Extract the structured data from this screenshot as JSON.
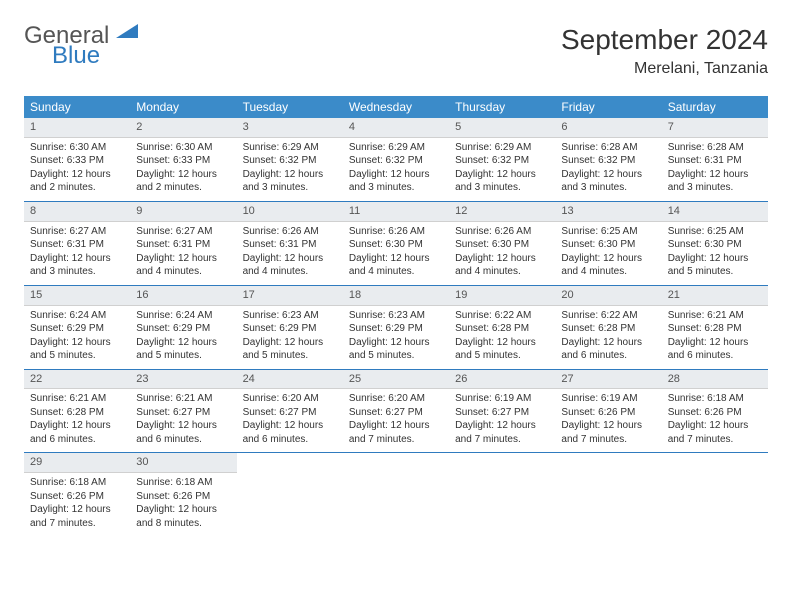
{
  "brand": {
    "line1": "General",
    "line2": "Blue"
  },
  "title": "September 2024",
  "location": "Merelani, Tanzania",
  "header_bg": "#3b8bc9",
  "daynum_bg": "#e9ecef",
  "sep_color": "#2f7bbf",
  "weekdays": [
    "Sunday",
    "Monday",
    "Tuesday",
    "Wednesday",
    "Thursday",
    "Friday",
    "Saturday"
  ],
  "weeks": [
    [
      {
        "n": "1",
        "sr": "6:30 AM",
        "ss": "6:33 PM",
        "dl": "12 hours and 2 minutes."
      },
      {
        "n": "2",
        "sr": "6:30 AM",
        "ss": "6:33 PM",
        "dl": "12 hours and 2 minutes."
      },
      {
        "n": "3",
        "sr": "6:29 AM",
        "ss": "6:32 PM",
        "dl": "12 hours and 3 minutes."
      },
      {
        "n": "4",
        "sr": "6:29 AM",
        "ss": "6:32 PM",
        "dl": "12 hours and 3 minutes."
      },
      {
        "n": "5",
        "sr": "6:29 AM",
        "ss": "6:32 PM",
        "dl": "12 hours and 3 minutes."
      },
      {
        "n": "6",
        "sr": "6:28 AM",
        "ss": "6:32 PM",
        "dl": "12 hours and 3 minutes."
      },
      {
        "n": "7",
        "sr": "6:28 AM",
        "ss": "6:31 PM",
        "dl": "12 hours and 3 minutes."
      }
    ],
    [
      {
        "n": "8",
        "sr": "6:27 AM",
        "ss": "6:31 PM",
        "dl": "12 hours and 3 minutes."
      },
      {
        "n": "9",
        "sr": "6:27 AM",
        "ss": "6:31 PM",
        "dl": "12 hours and 4 minutes."
      },
      {
        "n": "10",
        "sr": "6:26 AM",
        "ss": "6:31 PM",
        "dl": "12 hours and 4 minutes."
      },
      {
        "n": "11",
        "sr": "6:26 AM",
        "ss": "6:30 PM",
        "dl": "12 hours and 4 minutes."
      },
      {
        "n": "12",
        "sr": "6:26 AM",
        "ss": "6:30 PM",
        "dl": "12 hours and 4 minutes."
      },
      {
        "n": "13",
        "sr": "6:25 AM",
        "ss": "6:30 PM",
        "dl": "12 hours and 4 minutes."
      },
      {
        "n": "14",
        "sr": "6:25 AM",
        "ss": "6:30 PM",
        "dl": "12 hours and 5 minutes."
      }
    ],
    [
      {
        "n": "15",
        "sr": "6:24 AM",
        "ss": "6:29 PM",
        "dl": "12 hours and 5 minutes."
      },
      {
        "n": "16",
        "sr": "6:24 AM",
        "ss": "6:29 PM",
        "dl": "12 hours and 5 minutes."
      },
      {
        "n": "17",
        "sr": "6:23 AM",
        "ss": "6:29 PM",
        "dl": "12 hours and 5 minutes."
      },
      {
        "n": "18",
        "sr": "6:23 AM",
        "ss": "6:29 PM",
        "dl": "12 hours and 5 minutes."
      },
      {
        "n": "19",
        "sr": "6:22 AM",
        "ss": "6:28 PM",
        "dl": "12 hours and 5 minutes."
      },
      {
        "n": "20",
        "sr": "6:22 AM",
        "ss": "6:28 PM",
        "dl": "12 hours and 6 minutes."
      },
      {
        "n": "21",
        "sr": "6:21 AM",
        "ss": "6:28 PM",
        "dl": "12 hours and 6 minutes."
      }
    ],
    [
      {
        "n": "22",
        "sr": "6:21 AM",
        "ss": "6:28 PM",
        "dl": "12 hours and 6 minutes."
      },
      {
        "n": "23",
        "sr": "6:21 AM",
        "ss": "6:27 PM",
        "dl": "12 hours and 6 minutes."
      },
      {
        "n": "24",
        "sr": "6:20 AM",
        "ss": "6:27 PM",
        "dl": "12 hours and 6 minutes."
      },
      {
        "n": "25",
        "sr": "6:20 AM",
        "ss": "6:27 PM",
        "dl": "12 hours and 7 minutes."
      },
      {
        "n": "26",
        "sr": "6:19 AM",
        "ss": "6:27 PM",
        "dl": "12 hours and 7 minutes."
      },
      {
        "n": "27",
        "sr": "6:19 AM",
        "ss": "6:26 PM",
        "dl": "12 hours and 7 minutes."
      },
      {
        "n": "28",
        "sr": "6:18 AM",
        "ss": "6:26 PM",
        "dl": "12 hours and 7 minutes."
      }
    ],
    [
      {
        "n": "29",
        "sr": "6:18 AM",
        "ss": "6:26 PM",
        "dl": "12 hours and 7 minutes."
      },
      {
        "n": "30",
        "sr": "6:18 AM",
        "ss": "6:26 PM",
        "dl": "12 hours and 8 minutes."
      },
      null,
      null,
      null,
      null,
      null
    ]
  ],
  "labels": {
    "sunrise": "Sunrise:",
    "sunset": "Sunset:",
    "daylight": "Daylight:"
  }
}
